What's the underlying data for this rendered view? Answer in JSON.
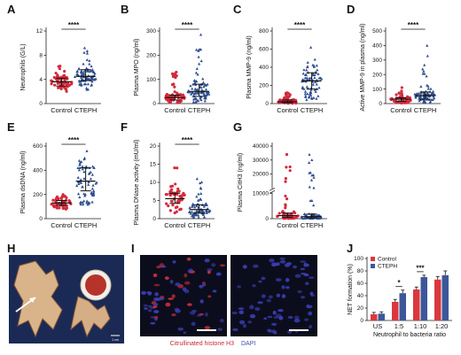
{
  "colors": {
    "control": "#d42a3c",
    "cteph": "#2f4e8f",
    "control_bar": "#d9383e",
    "cteph_bar": "#3c5799",
    "axis": "#222222",
    "micro_bg": "#0c0d1c",
    "photo_bg": "#1b2a55"
  },
  "chart_data": [
    {
      "panel": "A",
      "type": "scatter",
      "ylabel": "Neutrophils (G/L)",
      "yticks": [
        "0",
        "4",
        "8",
        "12"
      ],
      "ylim": [
        0,
        12
      ],
      "categories": [
        "Control",
        "CTEPH"
      ],
      "series": [
        {
          "name": "Control",
          "n": 60,
          "median": 3.6,
          "q1": 2.9,
          "q3": 4.2,
          "min": 1.8,
          "max": 6.2
        },
        {
          "name": "CTEPH",
          "n": 85,
          "median": 4.5,
          "q1": 3.8,
          "q3": 5.6,
          "min": 2.2,
          "max": 9.2
        }
      ],
      "significance": "****"
    },
    {
      "panel": "B",
      "type": "scatter",
      "ylabel": "Plasma MPO (ng/ml)",
      "yticks": [
        "0",
        "100",
        "200",
        "300"
      ],
      "ylim": [
        0,
        300
      ],
      "categories": [
        "Control",
        "CTEPH"
      ],
      "series": [
        {
          "name": "Control",
          "n": 60,
          "median": 25,
          "q1": 15,
          "q3": 35,
          "min": 3,
          "max": 130
        },
        {
          "name": "CTEPH",
          "n": 85,
          "median": 50,
          "q1": 30,
          "q3": 80,
          "min": 5,
          "max": 285
        }
      ],
      "significance": "****"
    },
    {
      "panel": "C",
      "type": "scatter",
      "ylabel": "Plasma MMP-9 (ng/ml)",
      "yticks": [
        "0",
        "200",
        "400",
        "600",
        "800"
      ],
      "ylim": [
        0,
        800
      ],
      "categories": [
        "Control",
        "CTEPH"
      ],
      "series": [
        {
          "name": "Control",
          "n": 55,
          "median": 20,
          "q1": 10,
          "q3": 40,
          "min": 2,
          "max": 120
        },
        {
          "name": "CTEPH",
          "n": 75,
          "median": 250,
          "q1": 160,
          "q3": 340,
          "min": 40,
          "max": 620
        }
      ],
      "significance": "****"
    },
    {
      "panel": "D",
      "type": "scatter",
      "ylabel": "Active MMP-9 in plasma (ng/ml)",
      "yticks": [
        "0",
        "100",
        "200",
        "300",
        "400",
        "500"
      ],
      "ylim": [
        0,
        500
      ],
      "categories": [
        "Control",
        "CTEPH"
      ],
      "series": [
        {
          "name": "Control",
          "n": 55,
          "median": 30,
          "q1": 15,
          "q3": 40,
          "min": 2,
          "max": 110
        },
        {
          "name": "CTEPH",
          "n": 75,
          "median": 55,
          "q1": 30,
          "q3": 80,
          "min": 5,
          "max": 400
        }
      ],
      "significance": "****"
    },
    {
      "panel": "E",
      "type": "scatter",
      "ylabel": "Plasma dsDNA (ng/ml)",
      "yticks": [
        "0",
        "200",
        "400",
        "600"
      ],
      "ylim": [
        0,
        600
      ],
      "categories": [
        "Control",
        "CTEPH"
      ],
      "series": [
        {
          "name": "Control",
          "n": 55,
          "median": 130,
          "q1": 110,
          "q3": 150,
          "min": 70,
          "max": 200
        },
        {
          "name": "CTEPH",
          "n": 70,
          "median": 310,
          "q1": 230,
          "q3": 420,
          "min": 100,
          "max": 560
        }
      ],
      "significance": "****"
    },
    {
      "panel": "F",
      "type": "scatter",
      "ylabel": "Plasma DNase activity (mU/ml)",
      "yticks": [
        "0",
        "5",
        "10",
        "15",
        "20"
      ],
      "ylim": [
        0,
        20
      ],
      "categories": [
        "Control",
        "CTEPH"
      ],
      "series": [
        {
          "name": "Control",
          "n": 55,
          "median": 5.5,
          "q1": 4.2,
          "q3": 7.0,
          "min": 1.5,
          "max": 14
        },
        {
          "name": "CTEPH",
          "n": 80,
          "median": 2.5,
          "q1": 1.5,
          "q3": 3.8,
          "min": 0.3,
          "max": 11
        }
      ],
      "significance": "****"
    },
    {
      "panel": "G",
      "type": "scatter",
      "ylabel": "Plasma CitH3 (ng/ml)",
      "yticks": [
        "0",
        "10000",
        "20000",
        "30000",
        "40000"
      ],
      "ylim": [
        0,
        40000
      ],
      "axis_break": true,
      "categories": [
        "Control",
        "CTEPH"
      ],
      "series": [
        {
          "name": "Control",
          "n": 55,
          "median": 1200,
          "q1": 500,
          "q3": 2200,
          "min": 50,
          "max": 34000
        },
        {
          "name": "CTEPH",
          "n": 75,
          "median": 800,
          "q1": 300,
          "q3": 1800,
          "min": 50,
          "max": 34000
        }
      ],
      "significance": ""
    },
    {
      "panel": "J",
      "type": "bar",
      "ylabel": "NET formation (%)",
      "xlabel": "Neutrophil to bacteria ratio",
      "yticks": [
        "0",
        "20",
        "40",
        "60",
        "80",
        "100"
      ],
      "ylim": [
        0,
        100
      ],
      "categories": [
        "US",
        "1:5",
        "1:10",
        "1:20"
      ],
      "series": [
        {
          "name": "Control",
          "values": [
            10,
            30,
            50,
            66
          ],
          "errors": [
            3,
            4,
            4,
            5
          ]
        },
        {
          "name": "CTEPH",
          "values": [
            11,
            44,
            70,
            73
          ],
          "errors": [
            3,
            5,
            3,
            7
          ]
        }
      ],
      "significance": [
        "",
        "*",
        "***",
        ""
      ],
      "legend": "top-left"
    }
  ],
  "panels": {
    "H": {
      "label": "H",
      "scale_text": "1 cm"
    },
    "I": {
      "label": "I",
      "caption_red": "Citrullinated histone H3",
      "caption_blue": "DAPI"
    }
  }
}
